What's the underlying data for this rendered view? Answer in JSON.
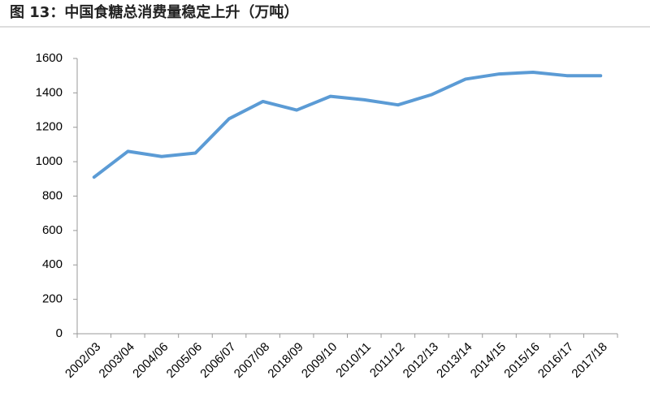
{
  "chart_data": {
    "type": "line",
    "title": "图 13：中国食糖总消费量稳定上升（万吨）",
    "categories": [
      "2002/03",
      "2003/04",
      "2004/06",
      "2005/06",
      "2006/07",
      "2007/08",
      "2018/09",
      "2009/10",
      "2010/11",
      "2011/12",
      "2012/13",
      "2013/14",
      "2014/15",
      "2015/16",
      "2016/17",
      "2017/18"
    ],
    "values": [
      910,
      1060,
      1030,
      1050,
      1250,
      1350,
      1300,
      1380,
      1360,
      1330,
      1390,
      1480,
      1510,
      1520,
      1500,
      1500
    ],
    "color": "#5b9bd5",
    "ylim": [
      0,
      1600
    ],
    "yticks": [
      0,
      200,
      400,
      600,
      800,
      1000,
      1200,
      1400,
      1600
    ],
    "grid": false
  }
}
